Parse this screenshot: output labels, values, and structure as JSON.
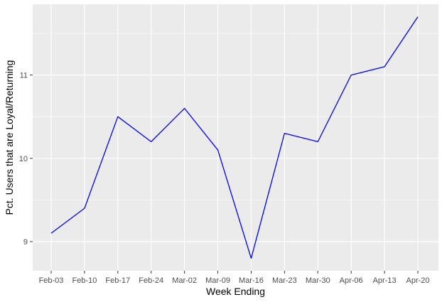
{
  "chart_data": {
    "type": "line",
    "title": "",
    "xlabel": "Week Ending",
    "ylabel": "Pct. Users that are Loyal/Returning",
    "categories": [
      "Feb-03",
      "Feb-10",
      "Feb-17",
      "Feb-24",
      "Mar-02",
      "Mar-09",
      "Mar-16",
      "Mar-23",
      "Mar-30",
      "Apr-06",
      "Apr-13",
      "Apr-20"
    ],
    "series": [
      {
        "values": [
          9.1,
          9.4,
          10.5,
          10.2,
          10.6,
          10.1,
          8.8,
          10.3,
          10.2,
          11.0,
          11.1,
          11.7
        ],
        "color": "#0000ff"
      }
    ],
    "ylim": [
      8.65,
      11.85
    ],
    "yticks": [
      9,
      10,
      11
    ],
    "ytick_labels": [
      "9",
      "10",
      "11"
    ],
    "grid": true,
    "panel_background": "#ebebeb",
    "grid_color": "#ffffff",
    "legend": "none"
  }
}
